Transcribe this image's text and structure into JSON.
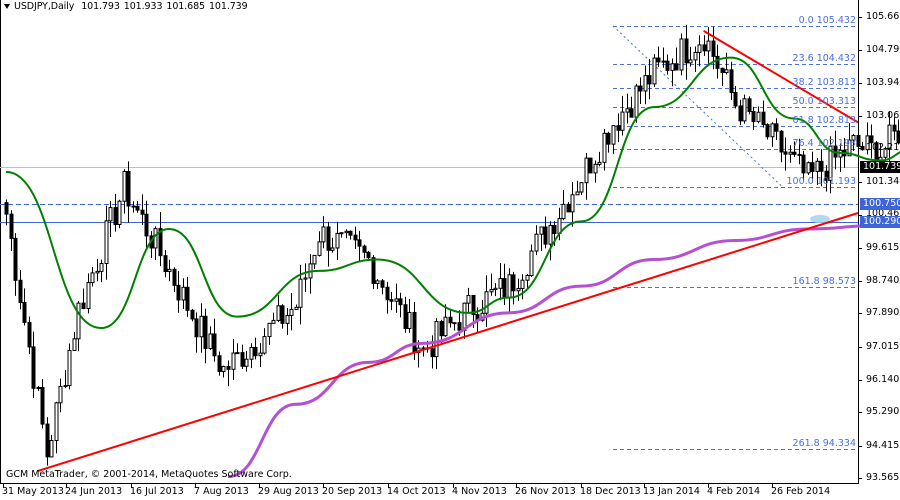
{
  "header": {
    "symbol_timeframe": "USDJPY,Daily",
    "open": "101.793",
    "high": "101.933",
    "low": "101.685",
    "close": "101.739"
  },
  "footer": {
    "copyright": "GCM MetaTrader, © 2001-2014, MetaQuotes Software Corp."
  },
  "colors": {
    "background": "#ffffff",
    "candle": "#000000",
    "sma_fast": "#008000",
    "sma_slow": "#b450d2",
    "trendline": "#ff0000",
    "fib_levels": "#4a6fe0",
    "horizontal_line": "#3d64d8",
    "price_tag_bg": "#3d64d8",
    "bid_line": "#c0c0c0",
    "bid_tag_bg": "#000000"
  },
  "price_tags": {
    "bid": "101.739",
    "line_1": "100.750",
    "line_2": "100.290",
    "overlap_tick": "100.465"
  },
  "chart_data": {
    "type": "candlestick",
    "title": "USDJPY,Daily",
    "xlabel": "",
    "ylabel": "",
    "ylim": [
      93.565,
      105.665
    ],
    "y_ticks": [
      "105.665",
      "104.790",
      "103.940",
      "103.065",
      "102.215",
      "101.340",
      "100.465",
      "99.615",
      "98.740",
      "97.890",
      "97.015",
      "96.140",
      "95.290",
      "94.415",
      "93.565"
    ],
    "x_ticks": [
      "31 May 2013",
      "24 Jun 2013",
      "16 Jul 2013",
      "7 Aug 2013",
      "29 Aug 2013",
      "20 Sep 2013",
      "14 Oct 2013",
      "4 Nov 2013",
      "26 Nov 2013",
      "18 Dec 2013",
      "13 Jan 2014",
      "4 Feb 2014",
      "26 Feb 2014"
    ],
    "last_bar": {
      "open": 101.793,
      "high": 101.933,
      "low": 101.685,
      "close": 101.739
    },
    "approx_close_path": [
      {
        "date": "31 May 2013",
        "close": 100.5
      },
      {
        "date": "13 Jun 2013",
        "close": 94.2
      },
      {
        "date": "24 Jun 2013",
        "close": 98.0
      },
      {
        "date": "8 Jul 2013",
        "close": 101.2
      },
      {
        "date": "16 Jul 2013",
        "close": 99.9
      },
      {
        "date": "1 Aug 2013",
        "close": 97.2
      },
      {
        "date": "7 Aug 2013",
        "close": 96.4
      },
      {
        "date": "29 Aug 2013",
        "close": 98.1
      },
      {
        "date": "5 Sep 2013",
        "close": 100.0
      },
      {
        "date": "20 Sep 2013",
        "close": 99.3
      },
      {
        "date": "8 Oct 2013",
        "close": 96.9
      },
      {
        "date": "22 Oct 2013",
        "close": 98.0
      },
      {
        "date": "4 Nov 2013",
        "close": 98.6
      },
      {
        "date": "15 Nov 2013",
        "close": 100.2
      },
      {
        "date": "26 Nov 2013",
        "close": 101.5
      },
      {
        "date": "5 Dec 2013",
        "close": 102.9
      },
      {
        "date": "18 Dec 2013",
        "close": 104.2
      },
      {
        "date": "2 Jan 2014",
        "close": 105.2
      },
      {
        "date": "13 Jan 2014",
        "close": 103.4
      },
      {
        "date": "27 Jan 2014",
        "close": 102.2
      },
      {
        "date": "4 Feb 2014",
        "close": 101.4
      },
      {
        "date": "18 Feb 2014",
        "close": 102.3
      },
      {
        "date": "26 Feb 2014",
        "close": 102.1
      },
      {
        "date": "7 Mar 2014",
        "close": 103.1
      },
      {
        "date": "14 Mar 2014",
        "close": 101.3
      },
      {
        "date": "18 Mar 2014",
        "close": 101.739
      }
    ],
    "series": [
      {
        "name": "SMA fast (green)",
        "approx_values": [
          {
            "date": "31 May 2013",
            "value": 101.6
          },
          {
            "date": "1 Jul 2013",
            "value": 97.5
          },
          {
            "date": "22 Jul 2013",
            "value": 100.1
          },
          {
            "date": "12 Aug 2013",
            "value": 97.8
          },
          {
            "date": "5 Sep 2013",
            "value": 99.0
          },
          {
            "date": "24 Sep 2013",
            "value": 99.3
          },
          {
            "date": "22 Oct 2013",
            "value": 97.9
          },
          {
            "date": "4 Nov 2013",
            "value": 98.3
          },
          {
            "date": "26 Nov 2013",
            "value": 100.3
          },
          {
            "date": "18 Dec 2013",
            "value": 103.3
          },
          {
            "date": "10 Jan 2014",
            "value": 104.6
          },
          {
            "date": "30 Jan 2014",
            "value": 103.0
          },
          {
            "date": "13 Feb 2014",
            "value": 102.1
          },
          {
            "date": "26 Feb 2014",
            "value": 101.9
          },
          {
            "date": "7 Mar 2014",
            "value": 102.2
          },
          {
            "date": "18 Mar 2014",
            "value": 102.2
          }
        ]
      },
      {
        "name": "SMA slow (purple)",
        "approx_values": [
          {
            "date": "8 Aug 2013",
            "value": 93.6
          },
          {
            "date": "29 Aug 2013",
            "value": 95.5
          },
          {
            "date": "20 Sep 2013",
            "value": 96.6
          },
          {
            "date": "8 Oct 2013",
            "value": 97.1
          },
          {
            "date": "4 Nov 2013",
            "value": 97.9
          },
          {
            "date": "26 Nov 2013",
            "value": 98.6
          },
          {
            "date": "18 Dec 2013",
            "value": 99.3
          },
          {
            "date": "13 Jan 2014",
            "value": 99.8
          },
          {
            "date": "4 Feb 2014",
            "value": 100.1
          },
          {
            "date": "26 Feb 2014",
            "value": 100.2
          },
          {
            "date": "18 Mar 2014",
            "value": 100.38
          }
        ]
      }
    ],
    "trendlines": [
      {
        "name": "rising support",
        "from": {
          "date": "13 Jun 2013",
          "price": 93.75
        },
        "to": {
          "date": "18 Mar 2014",
          "price": 100.55
        }
      },
      {
        "name": "falling resistance",
        "from": {
          "date": "2 Jan 2014",
          "price": 105.3
        },
        "to": {
          "date": "18 Mar 2014",
          "price": 102.9
        }
      }
    ],
    "horizontal_lines": [
      {
        "price": 100.75,
        "style": "dashed"
      },
      {
        "price": 100.29,
        "style": "solid"
      }
    ],
    "fibonacci": {
      "levels": [
        {
          "label": "0.0 105.432",
          "ratio": "0.0",
          "price": 105.432
        },
        {
          "label": "23.6 104.432",
          "ratio": "23.6",
          "price": 104.432
        },
        {
          "label": "38.2 103.813",
          "ratio": "38.2",
          "price": 103.813
        },
        {
          "label": "50.0 103.313",
          "ratio": "50.0",
          "price": 103.313
        },
        {
          "label": "61.8 102.813",
          "ratio": "61.8",
          "price": 102.813
        },
        {
          "label": "76.4 102.193",
          "ratio": "76.4",
          "price": 102.193
        },
        {
          "label": "100.0 101.193",
          "ratio": "100.0",
          "price": 101.193
        },
        {
          "label": "161.8 98.573",
          "ratio": "161.8",
          "price": 98.573
        },
        {
          "label": "261.8 94.334",
          "ratio": "261.8",
          "price": 94.334
        }
      ]
    }
  }
}
